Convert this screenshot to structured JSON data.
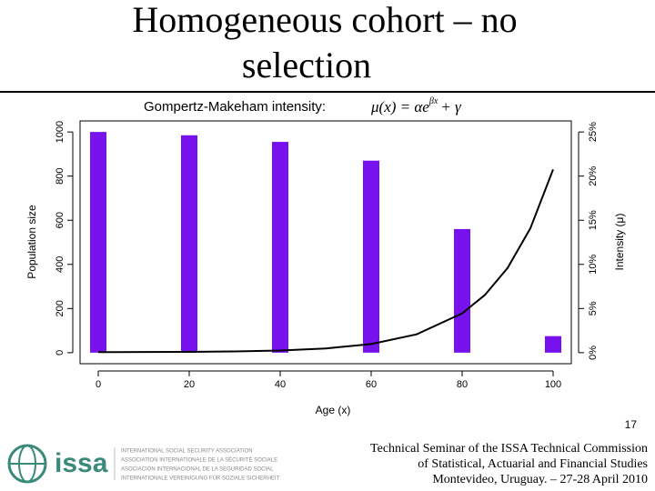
{
  "chart_data": {
    "type": "bar",
    "title": [
      "Homogeneous cohort – no",
      "selection"
    ],
    "subtitle": "Gompertz-Makeham intensity:",
    "formula": {
      "lhs": "μ(x) = αe",
      "exponent": "βx",
      "rhs": "+ γ"
    },
    "x_label": "Age (x)",
    "y_label": "Population size",
    "y2_label": "Intensity (μ)",
    "xlim": [
      -4,
      104
    ],
    "xticks": [
      0,
      20,
      40,
      60,
      80,
      100
    ],
    "ylim": [
      -50,
      1050
    ],
    "yticks": [
      0,
      200,
      400,
      600,
      800,
      1000
    ],
    "y2lim": [
      -1.25,
      26.25
    ],
    "y2ticks": [
      {
        "value": 0,
        "label": "0%"
      },
      {
        "value": 5,
        "label": "5%"
      },
      {
        "value": 10,
        "label": "10%"
      },
      {
        "value": 15,
        "label": "15%"
      },
      {
        "value": 20,
        "label": "20%"
      },
      {
        "value": 25,
        "label": "25%"
      }
    ],
    "series": [
      {
        "type": "bar",
        "color": "#7711ee",
        "x": [
          0,
          20,
          40,
          60,
          80,
          100
        ],
        "values": [
          1000,
          985,
          955,
          870,
          560,
          75
        ]
      },
      {
        "type": "line",
        "axis": "y2",
        "color": "#000000",
        "x": [
          0,
          10,
          20,
          30,
          40,
          50,
          60,
          70,
          80,
          85,
          90,
          95,
          100
        ],
        "values": [
          0.06,
          0.07,
          0.09,
          0.14,
          0.25,
          0.48,
          0.98,
          2.08,
          4.45,
          6.53,
          9.6,
          14.09,
          20.75
        ]
      }
    ]
  },
  "page_number": "17",
  "footer": [
    "Technical Seminar of the ISSA Technical Commission",
    "of Statistical, Actuarial and Financial Studies",
    "Montevideo, Uruguay. – 27-28 April 2010"
  ],
  "logo": "issa",
  "association_names": [
    "INTERNATIONAL SOCIAL SECURITY ASSOCIATION",
    "ASSOCIATION INTERNATIONALE DE LA SÉCURITÉ SOCIALE",
    "ASOCIACIÓN INTERNACIONAL DE LA SEGURIDAD SOCIAL",
    "INTERNATIONALE VEREINIGUNG FÜR SOZIALE SICHERHEIT"
  ]
}
